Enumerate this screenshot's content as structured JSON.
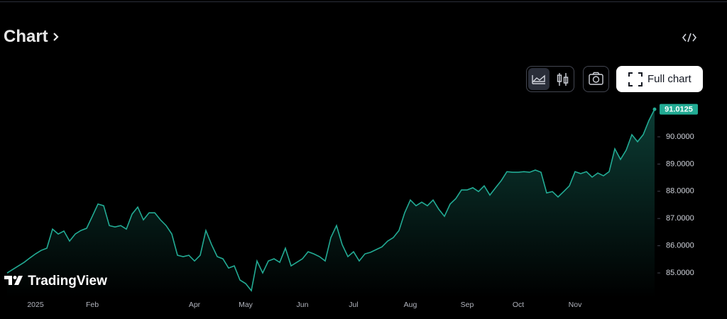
{
  "ui": {
    "heading": "Chart",
    "full_chart": "Full chart",
    "brand": "TradingView"
  },
  "chart_data": {
    "type": "area",
    "color": "#22ab94",
    "categories": [
      null,
      null,
      null,
      null,
      null,
      "2025",
      null,
      null,
      null,
      null,
      null,
      null,
      null,
      null,
      null,
      "Feb",
      null,
      null,
      null,
      null,
      null,
      null,
      null,
      null,
      null,
      null,
      null,
      null,
      null,
      null,
      null,
      null,
      null,
      "Apr",
      null,
      null,
      null,
      null,
      null,
      null,
      null,
      null,
      "May",
      null,
      null,
      null,
      null,
      null,
      null,
      null,
      null,
      null,
      "Jun",
      null,
      null,
      null,
      null,
      null,
      null,
      null,
      null,
      "Jul",
      null,
      null,
      null,
      null,
      null,
      null,
      null,
      null,
      null,
      "Aug",
      null,
      null,
      null,
      null,
      null,
      null,
      null,
      null,
      null,
      "Sep",
      null,
      null,
      null,
      null,
      null,
      null,
      null,
      null,
      "Oct",
      null,
      null,
      null,
      null,
      null,
      null,
      null,
      null,
      null,
      "Nov",
      null,
      null,
      null,
      null,
      null,
      null,
      null,
      null,
      null,
      null,
      null,
      null,
      null,
      null
    ],
    "values": [
      85.0,
      85.13,
      85.26,
      85.39,
      85.55,
      85.7,
      85.83,
      85.91,
      86.61,
      86.43,
      86.54,
      86.17,
      86.43,
      86.56,
      86.64,
      87.08,
      87.53,
      87.47,
      86.74,
      86.69,
      86.74,
      86.61,
      87.16,
      87.42,
      86.95,
      87.21,
      87.21,
      86.95,
      86.74,
      86.43,
      85.65,
      85.6,
      85.65,
      85.44,
      85.65,
      86.56,
      86.04,
      85.6,
      85.52,
      85.18,
      85.26,
      84.74,
      84.61,
      84.35,
      85.44,
      85.0,
      85.44,
      85.52,
      85.39,
      85.91,
      85.26,
      85.39,
      85.52,
      85.78,
      85.7,
      85.6,
      85.44,
      86.3,
      86.74,
      86.04,
      85.6,
      85.78,
      85.44,
      85.7,
      85.76,
      85.86,
      85.96,
      86.17,
      86.3,
      86.56,
      87.21,
      87.68,
      87.47,
      87.6,
      87.47,
      87.68,
      87.34,
      87.08,
      87.53,
      87.73,
      88.05,
      88.05,
      88.13,
      87.99,
      88.2,
      87.86,
      88.13,
      88.39,
      88.72,
      88.7,
      88.7,
      88.72,
      88.7,
      88.78,
      88.7,
      87.94,
      87.99,
      87.79,
      87.99,
      88.2,
      88.72,
      88.65,
      88.72,
      88.52,
      88.67,
      88.57,
      88.72,
      89.56,
      89.17,
      89.51,
      90.08,
      89.82,
      90.08,
      90.6,
      91.0125
    ],
    "ylim": [
      84.09,
      91.38
    ],
    "yticks": [
      {
        "value": 85,
        "label": "85.0000"
      },
      {
        "value": 86,
        "label": "86.0000"
      },
      {
        "value": 87,
        "label": "87.0000"
      },
      {
        "value": 88,
        "label": "88.0000"
      },
      {
        "value": 89,
        "label": "89.0000"
      },
      {
        "value": 90,
        "label": "90.0000"
      }
    ],
    "grid": false
  }
}
